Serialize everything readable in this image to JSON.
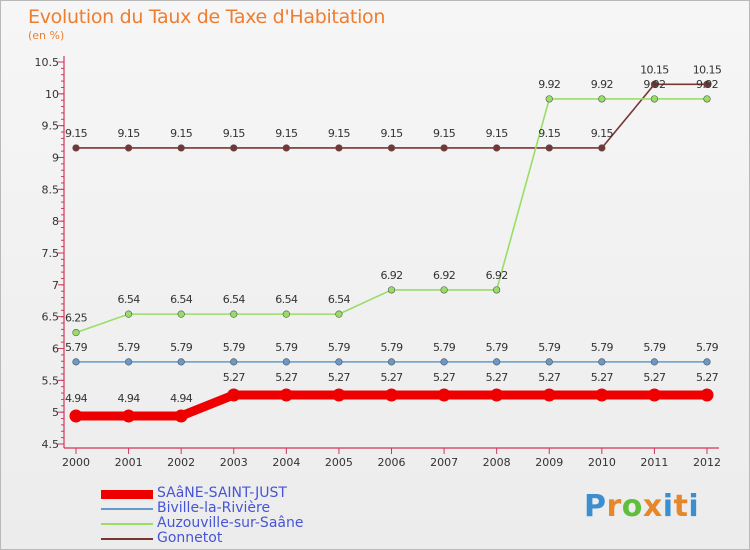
{
  "chart_data": {
    "type": "line",
    "title": "Evolution du Taux de Taxe d'Habitation",
    "subtitle": "(en %)",
    "x": [
      "2000",
      "2001",
      "2002",
      "2003",
      "2004",
      "2005",
      "2006",
      "2007",
      "2008",
      "2009",
      "2010",
      "2011",
      "2012"
    ],
    "ylim": [
      4.5,
      10.5
    ],
    "yticks": [
      "4.5",
      "5",
      "5.5",
      "6",
      "6.5",
      "7",
      "7.5",
      "8",
      "8.5",
      "9",
      "9.5",
      "10",
      "10.5"
    ],
    "grid": false,
    "legend_position": "bottom-left",
    "series": [
      {
        "name": "SAâNE-SAINT-JUST",
        "color": "#ee0000",
        "values": [
          4.94,
          4.94,
          4.94,
          5.27,
          5.27,
          5.27,
          5.27,
          5.27,
          5.27,
          5.27,
          5.27,
          5.27,
          5.27
        ],
        "labels": [
          "4.94",
          "4.94",
          "4.94",
          "5.27",
          "5.27",
          "5.27",
          "5.27",
          "5.27",
          "5.27",
          "5.27",
          "5.27",
          "5.27",
          "5.27"
        ]
      },
      {
        "name": "Biville-la-Rivière",
        "color": "#6699cc",
        "values": [
          5.79,
          5.79,
          5.79,
          5.79,
          5.79,
          5.79,
          5.79,
          5.79,
          5.79,
          5.79,
          5.79,
          5.79,
          5.79
        ],
        "labels": [
          "5.79",
          "5.79",
          "5.79",
          "5.79",
          "5.79",
          "5.79",
          "5.79",
          "5.79",
          "5.79",
          "5.79",
          "5.79",
          "5.79",
          "5.79"
        ]
      },
      {
        "name": "Auzouville-sur-Saâne",
        "color": "#99dd66",
        "values": [
          6.25,
          6.54,
          6.54,
          6.54,
          6.54,
          6.54,
          6.92,
          6.92,
          6.92,
          9.92,
          9.92,
          9.92,
          9.92
        ],
        "labels": [
          "6.25",
          "6.54",
          "6.54",
          "6.54",
          "6.54",
          "6.54",
          "6.92",
          "6.92",
          "6.92",
          "9.92",
          "9.92",
          "9.92",
          "9.92"
        ]
      },
      {
        "name": "Gonnetot",
        "color": "#7a3434",
        "values": [
          9.15,
          9.15,
          9.15,
          9.15,
          9.15,
          9.15,
          9.15,
          9.15,
          9.15,
          9.15,
          9.15,
          10.15,
          10.15
        ],
        "labels": [
          "9.15",
          "9.15",
          "9.15",
          "9.15",
          "9.15",
          "9.15",
          "9.15",
          "9.15",
          "9.15",
          "9.15",
          "9.15",
          "10.15",
          "10.15"
        ]
      }
    ]
  },
  "logo": {
    "letters": [
      "P",
      "r",
      "o",
      "x",
      "i",
      "t",
      "i"
    ]
  }
}
